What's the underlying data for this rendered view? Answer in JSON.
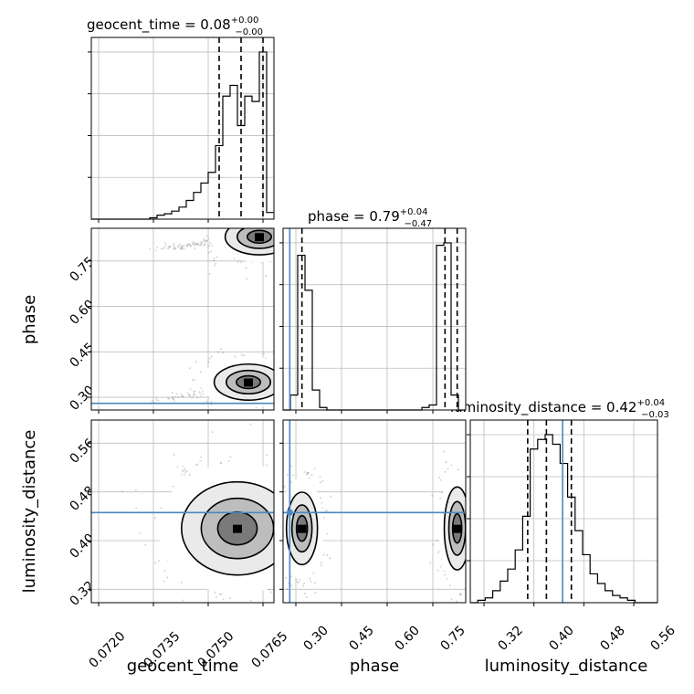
{
  "colors": {
    "truth": "#4a86c0",
    "line": "#000000",
    "grid": "#bdbdbd",
    "scatter": "#555555"
  },
  "parameters": [
    {
      "name": "geocent_time",
      "title": {
        "prefix": "geocent_time = 0.08",
        "sup": "+0.00",
        "sub": "−0.00"
      },
      "ticks": [
        "0.0720",
        "0.0735",
        "0.0750",
        "0.0765"
      ]
    },
    {
      "name": "phase",
      "title": {
        "prefix": "phase = 0.79",
        "sup": "+0.04",
        "sub": "−0.47"
      },
      "ticks": [
        "0.30",
        "0.45",
        "0.60",
        "0.75"
      ]
    },
    {
      "name": "luminosity_distance",
      "title": {
        "prefix": "luminosity_distance = 0.42",
        "sup": "+0.04",
        "sub": "−0.03"
      },
      "ticks": [
        "0.32",
        "0.40",
        "0.48",
        "0.56"
      ]
    }
  ],
  "chart_data": {
    "type": "corner",
    "grid": true,
    "parameters": [
      "geocent_time",
      "phase",
      "luminosity_distance"
    ],
    "ranges": [
      [
        0.0718,
        0.0768
      ],
      [
        0.258,
        0.858
      ],
      [
        0.298,
        0.598
      ]
    ],
    "truths": {
      "phase": 0.28,
      "luminosity_distance": 0.446
    },
    "histograms": [
      {
        "parameter": "geocent_time",
        "bin_edges": [
          0.0718,
          0.072,
          0.0722,
          0.0724,
          0.0726,
          0.0728,
          0.073,
          0.0732,
          0.0734,
          0.0736,
          0.0738,
          0.074,
          0.0742,
          0.0744,
          0.0746,
          0.0748,
          0.075,
          0.0752,
          0.0754,
          0.0756,
          0.0758,
          0.076,
          0.0762,
          0.0764,
          0.0766,
          0.0768
        ],
        "counts": [
          0,
          0,
          0,
          0,
          0,
          0,
          0,
          0,
          1,
          3,
          4,
          6,
          9,
          14,
          20,
          27,
          35,
          55,
          92,
          100,
          70,
          92,
          88,
          125,
          5
        ],
        "quantiles": [
          0.0753,
          0.0759,
          0.0765
        ]
      },
      {
        "parameter": "phase",
        "bin_edges": [
          0.258,
          0.282,
          0.306,
          0.33,
          0.354,
          0.378,
          0.402,
          0.426,
          0.45,
          0.474,
          0.498,
          0.522,
          0.546,
          0.57,
          0.594,
          0.618,
          0.642,
          0.666,
          0.69,
          0.714,
          0.738,
          0.762,
          0.786,
          0.81,
          0.834,
          0.858
        ],
        "counts": [
          0,
          6,
          62,
          48,
          8,
          1,
          0,
          0,
          0,
          0,
          0,
          0,
          0,
          0,
          0,
          0,
          0,
          0,
          0,
          1,
          2,
          66,
          67,
          6,
          0
        ],
        "quantiles": [
          0.32,
          0.79,
          0.83
        ]
      },
      {
        "parameter": "luminosity_distance",
        "bin_edges": [
          0.298,
          0.31,
          0.322,
          0.334,
          0.346,
          0.358,
          0.37,
          0.382,
          0.394,
          0.406,
          0.418,
          0.43,
          0.442,
          0.454,
          0.466,
          0.478,
          0.49,
          0.502,
          0.514,
          0.526,
          0.538,
          0.55,
          0.562,
          0.574,
          0.586,
          0.598
        ],
        "counts": [
          0,
          1,
          2,
          5,
          9,
          14,
          22,
          36,
          64,
          68,
          70,
          66,
          58,
          44,
          30,
          20,
          12,
          8,
          5,
          3,
          2,
          1,
          0,
          0,
          0
        ],
        "quantiles": [
          0.39,
          0.42,
          0.46
        ]
      }
    ],
    "densities": [
      {
        "x": "geocent_time",
        "y": "phase",
        "modes": [
          {
            "cx": 0.0764,
            "cy": 0.83,
            "spread_x": 0.00055,
            "spread_y": 0.035,
            "weight": 1.0,
            "tail_to": [
              0.0735,
              0.79
            ]
          },
          {
            "cx": 0.0761,
            "cy": 0.35,
            "spread_x": 0.00055,
            "spread_y": 0.035,
            "weight": 0.6,
            "tail_to": [
              0.0735,
              0.285
            ]
          }
        ]
      },
      {
        "x": "geocent_time",
        "y": "luminosity_distance",
        "modes": [
          {
            "cx": 0.0758,
            "cy": 0.42,
            "spread_x": 0.0009,
            "spread_y": 0.045,
            "weight": 1.0,
            "tail_to": [
              0.0742,
              0.52
            ]
          }
        ]
      },
      {
        "x": "phase",
        "y": "luminosity_distance",
        "modes": [
          {
            "cx": 0.32,
            "cy": 0.42,
            "spread_x": 0.03,
            "spread_y": 0.035,
            "weight": 1.0
          },
          {
            "cx": 0.83,
            "cy": 0.42,
            "spread_x": 0.025,
            "spread_y": 0.04,
            "weight": 1.0
          }
        ]
      }
    ]
  }
}
